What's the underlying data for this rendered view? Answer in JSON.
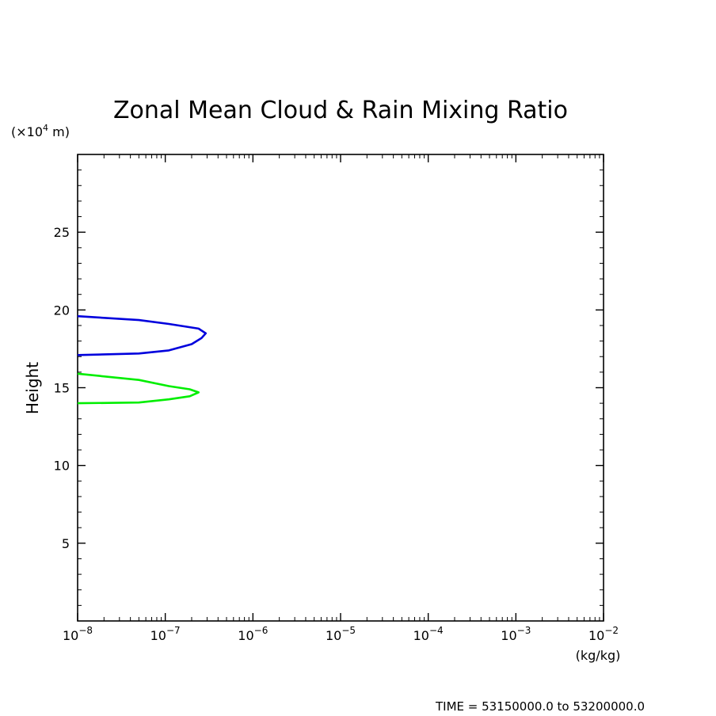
{
  "chart_data": {
    "type": "line",
    "title": "Zonal Mean Cloud & Rain Mixing Ratio",
    "ylabel": "Height",
    "y_unit_label": "(×10",
    "y_unit_exp": "4",
    "y_unit_suffix": " m)",
    "x_unit_label": "(kg/kg)",
    "xscale": "log",
    "xlim": [
      1e-08,
      0.01
    ],
    "ylim": [
      0,
      30
    ],
    "x_ticks": [
      {
        "base": "10",
        "exp": "−8",
        "value": 1e-08
      },
      {
        "base": "10",
        "exp": "−7",
        "value": 1e-07
      },
      {
        "base": "10",
        "exp": "−6",
        "value": 1e-06
      },
      {
        "base": "10",
        "exp": "−5",
        "value": 1e-05
      },
      {
        "base": "10",
        "exp": "−4",
        "value": 0.0001
      },
      {
        "base": "10",
        "exp": "−3",
        "value": 0.001
      },
      {
        "base": "10",
        "exp": "−2",
        "value": 0.01
      }
    ],
    "y_ticks": [
      5,
      10,
      15,
      20,
      25
    ],
    "y_ticklabels": [
      "5",
      "10",
      "15",
      "20",
      "25"
    ],
    "grid": false,
    "series": [
      {
        "color": "#0000dd",
        "points": [
          {
            "x": 1e-08,
            "y": 17.1
          },
          {
            "x": 5e-08,
            "y": 17.2
          },
          {
            "x": 1.1e-07,
            "y": 17.4
          },
          {
            "x": 2e-07,
            "y": 17.8
          },
          {
            "x": 2.6e-07,
            "y": 18.2
          },
          {
            "x": 2.9e-07,
            "y": 18.5
          },
          {
            "x": 2.4e-07,
            "y": 18.8
          },
          {
            "x": 1.1e-07,
            "y": 19.1
          },
          {
            "x": 5e-08,
            "y": 19.35
          },
          {
            "x": 1e-08,
            "y": 19.6
          }
        ]
      },
      {
        "color": "#00ee00",
        "points": [
          {
            "x": 1e-08,
            "y": 14.0
          },
          {
            "x": 5e-08,
            "y": 14.05
          },
          {
            "x": 1.1e-07,
            "y": 14.25
          },
          {
            "x": 1.9e-07,
            "y": 14.45
          },
          {
            "x": 2.4e-07,
            "y": 14.7
          },
          {
            "x": 1.9e-07,
            "y": 14.9
          },
          {
            "x": 1.1e-07,
            "y": 15.1
          },
          {
            "x": 5e-08,
            "y": 15.5
          },
          {
            "x": 1e-08,
            "y": 15.9
          }
        ]
      }
    ]
  },
  "footer": {
    "time_range": "TIME = 53150000.0 to 53200000.0"
  }
}
